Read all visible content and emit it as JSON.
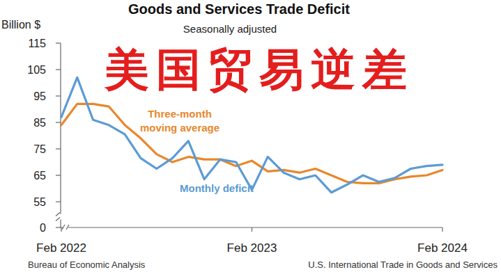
{
  "chart_data": {
    "type": "line",
    "title": "Goods and Services Trade Deficit",
    "subtitle": "Seasonally adjusted",
    "y_label": "Billion $",
    "annotation": "美国贸易逆差",
    "source": "Bureau of Economic Analysis",
    "report": "U.S. International Trade in Goods and Services",
    "categories": [
      "Feb 2022",
      null,
      null,
      null,
      null,
      null,
      null,
      null,
      null,
      null,
      null,
      null,
      "Feb 2023",
      null,
      null,
      null,
      null,
      null,
      null,
      null,
      null,
      null,
      null,
      null,
      "Feb 2024"
    ],
    "series": [
      {
        "name": "Monthly deficit",
        "color": "#5b9bd5",
        "values": [
          87,
          102,
          86,
          84,
          80.5,
          71.5,
          67.5,
          71.5,
          78,
          63.5,
          71,
          70,
          59.5,
          72,
          66,
          63.5,
          65,
          58.5,
          61.5,
          65,
          62.5,
          64,
          67.5,
          68.5,
          69
        ]
      },
      {
        "name": "Three-month moving average",
        "color": "#e8872c",
        "values": [
          84,
          92,
          92,
          91,
          84,
          79,
          73,
          70,
          72,
          71,
          71,
          68.5,
          70.5,
          66.5,
          67,
          66,
          67.5,
          65,
          62.5,
          62,
          62,
          63.5,
          64.5,
          65,
          67
        ]
      }
    ],
    "ylim": [
      0,
      115
    ],
    "yticks": [
      0,
      55,
      65,
      75,
      85,
      95,
      105,
      115
    ],
    "grid": false
  }
}
